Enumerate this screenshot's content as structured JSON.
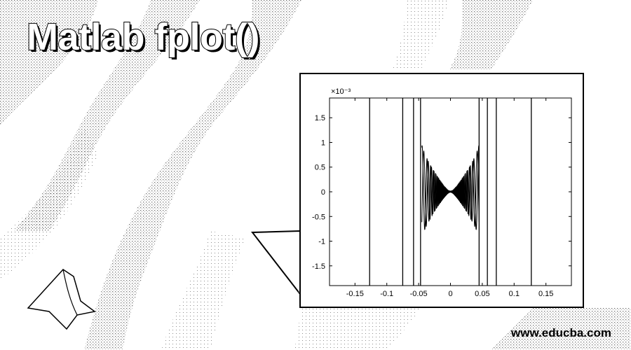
{
  "page": {
    "title": "Matlab fplot()",
    "footer": "www.educba.com"
  },
  "chart_data": {
    "type": "line",
    "title": "",
    "xlabel": "",
    "ylabel": "",
    "y_exponent_label": "×10⁻³",
    "xlim": [
      -0.19,
      0.19
    ],
    "ylim": [
      -1.9,
      1.9
    ],
    "x_ticks": [
      -0.15,
      -0.1,
      -0.05,
      0,
      0.05,
      0.1,
      0.15
    ],
    "x_tick_labels": [
      "-0.15",
      "-0.1",
      "-0.05",
      "0",
      "0.05",
      "0.1",
      "0.15"
    ],
    "y_ticks": [
      -1.5,
      -1,
      -0.5,
      0,
      0.5,
      1,
      1.5
    ],
    "y_tick_labels": [
      "-1.5",
      "-1",
      "-0.5",
      "0",
      "0.5",
      "1",
      "1.5"
    ],
    "grid": false,
    "line_color": "#000000",
    "vertical_crossings_x": [
      -0.127,
      -0.075,
      -0.058,
      -0.047,
      0.045,
      0.058,
      0.072,
      0.127
    ],
    "oscillation_envelope": {
      "x": [
        -0.045,
        -0.04,
        -0.03,
        -0.02,
        -0.01,
        -0.005,
        0,
        0.005,
        0.01,
        0.02,
        0.03,
        0.04,
        0.045
      ],
      "amplitude": [
        0.95,
        0.75,
        0.5,
        0.3,
        0.12,
        0.05,
        0.0,
        0.05,
        0.12,
        0.3,
        0.5,
        0.75,
        0.95
      ]
    }
  }
}
